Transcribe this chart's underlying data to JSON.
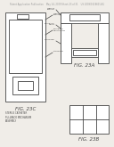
{
  "bg_color": "#f0ede8",
  "header_text": "Patent Application Publication    May 14, 2009 Sheet 23 of 31    US 2009/0118601 A1",
  "header_fontsize": 1.8,
  "header_color": "#999999",
  "fig23c_label": "FIG. 23C",
  "fig23a_label": "FIG. 23A",
  "fig23b_label": "FIG. 23B",
  "line_color": "#444444",
  "lw": 0.6,
  "white": "#ffffff"
}
